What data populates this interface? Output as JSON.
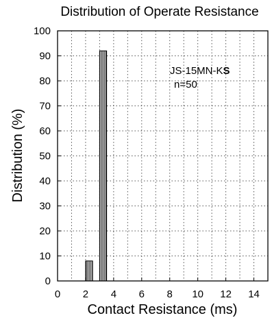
{
  "chart_data": {
    "type": "bar",
    "title": "Distribution of Operate Resistance",
    "xlabel": "Contact Resistance (ms)",
    "ylabel": "Distribution (%)",
    "xlim": [
      0,
      15
    ],
    "ylim": [
      0,
      100
    ],
    "x_ticks": [
      0,
      2,
      4,
      6,
      8,
      10,
      12,
      14
    ],
    "y_ticks": [
      0,
      10,
      20,
      30,
      40,
      50,
      60,
      70,
      80,
      90,
      100
    ],
    "grid": true,
    "bars": [
      {
        "x_start": 2.0,
        "x_end": 2.5,
        "value": 8
      },
      {
        "x_start": 3.0,
        "x_end": 3.5,
        "value": 92
      }
    ],
    "annotations": {
      "model_prefix": "JS-15MN-K",
      "model_suffix": "S",
      "sample": "n=50"
    },
    "colors": {
      "bar_hatch": "#000000",
      "bar_fill": "#ffffff"
    }
  }
}
